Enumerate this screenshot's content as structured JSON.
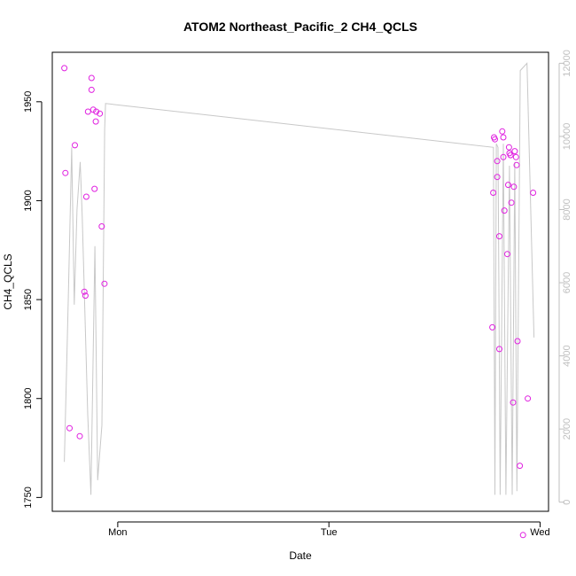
{
  "chart_data": {
    "type": "scatter",
    "title": "ATOM2 Northeast_Pacific_2 CH4_QCLS",
    "xlabel": "Date",
    "ylabel": "CH4_QCLS",
    "y_left_range": [
      1743,
      1975
    ],
    "y_left_ticks": [
      "1750",
      "1800",
      "1850",
      "1900",
      "1950"
    ],
    "y_right_range": [
      -250,
      12300
    ],
    "y_right_ticks": [
      "0",
      "2000",
      "4000",
      "6000",
      "8000",
      "10000",
      "12000"
    ],
    "x_range_days": [
      -0.31,
      2.04
    ],
    "x_ticks": [
      {
        "label": "Mon",
        "day": 0
      },
      {
        "label": "Tue",
        "day": 1
      },
      {
        "label": "Wed",
        "day": 2
      }
    ],
    "colors": {
      "points": "#e020e0",
      "altitude_line": "#c8c8c8",
      "axis": "#000000",
      "right_axis": "#bfbfbf"
    },
    "series": [
      {
        "values": [
          {
            "x": -0.253,
            "y": 1967
          },
          {
            "x": -0.248,
            "y": 1914
          },
          {
            "x": -0.228,
            "y": 1785
          },
          {
            "x": -0.203,
            "y": 1928
          },
          {
            "x": -0.18,
            "y": 1781
          },
          {
            "x": -0.158,
            "y": 1854
          },
          {
            "x": -0.153,
            "y": 1852
          },
          {
            "x": -0.149,
            "y": 1902
          },
          {
            "x": -0.141,
            "y": 1945
          },
          {
            "x": -0.124,
            "y": 1962
          },
          {
            "x": -0.124,
            "y": 1956
          },
          {
            "x": -0.116,
            "y": 1946
          },
          {
            "x": -0.11,
            "y": 1906
          },
          {
            "x": -0.104,
            "y": 1940
          },
          {
            "x": -0.102,
            "y": 1945
          },
          {
            "x": -0.085,
            "y": 1944
          },
          {
            "x": -0.076,
            "y": 1887
          },
          {
            "x": -0.063,
            "y": 1858
          },
          {
            "x": 1.774,
            "y": 1836
          },
          {
            "x": 1.778,
            "y": 1904
          },
          {
            "x": 1.782,
            "y": 1932
          },
          {
            "x": 1.786,
            "y": 1931
          },
          {
            "x": 1.797,
            "y": 1920
          },
          {
            "x": 1.797,
            "y": 1912
          },
          {
            "x": 1.807,
            "y": 1882
          },
          {
            "x": 1.807,
            "y": 1825
          },
          {
            "x": 1.821,
            "y": 1935
          },
          {
            "x": 1.826,
            "y": 1932
          },
          {
            "x": 1.826,
            "y": 1922
          },
          {
            "x": 1.831,
            "y": 1895
          },
          {
            "x": 1.845,
            "y": 1873
          },
          {
            "x": 1.849,
            "y": 1908
          },
          {
            "x": 1.853,
            "y": 1927
          },
          {
            "x": 1.855,
            "y": 1924
          },
          {
            "x": 1.86,
            "y": 1923
          },
          {
            "x": 1.864,
            "y": 1899
          },
          {
            "x": 1.872,
            "y": 1798
          },
          {
            "x": 1.876,
            "y": 1907
          },
          {
            "x": 1.88,
            "y": 1925
          },
          {
            "x": 1.886,
            "y": 1922
          },
          {
            "x": 1.889,
            "y": 1918
          },
          {
            "x": 1.893,
            "y": 1829
          },
          {
            "x": 1.904,
            "y": 1766
          },
          {
            "x": 1.919,
            "y": 1731
          },
          {
            "x": 1.942,
            "y": 1800
          },
          {
            "x": 1.967,
            "y": 1904
          }
        ]
      }
    ],
    "altitude_line": [
      {
        "x": -0.253,
        "y": 1100
      },
      {
        "x": -0.234,
        "y": 5600
      },
      {
        "x": -0.218,
        "y": 9700
      },
      {
        "x": -0.206,
        "y": 5400
      },
      {
        "x": -0.193,
        "y": 8000
      },
      {
        "x": -0.178,
        "y": 9300
      },
      {
        "x": -0.168,
        "y": 7800
      },
      {
        "x": -0.142,
        "y": 2400
      },
      {
        "x": -0.127,
        "y": 200
      },
      {
        "x": -0.108,
        "y": 7000
      },
      {
        "x": -0.095,
        "y": 600
      },
      {
        "x": -0.075,
        "y": 2100
      },
      {
        "x": -0.062,
        "y": 10200
      },
      {
        "x": -0.058,
        "y": 10900
      },
      {
        "x": 1.779,
        "y": 9700
      },
      {
        "x": 1.786,
        "y": 200
      },
      {
        "x": 1.793,
        "y": 9800
      },
      {
        "x": 1.801,
        "y": 9700
      },
      {
        "x": 1.811,
        "y": 200
      },
      {
        "x": 1.826,
        "y": 9800
      },
      {
        "x": 1.838,
        "y": 200
      },
      {
        "x": 1.855,
        "y": 9200
      },
      {
        "x": 1.868,
        "y": 200
      },
      {
        "x": 1.88,
        "y": 9300
      },
      {
        "x": 1.89,
        "y": 300
      },
      {
        "x": 1.906,
        "y": 11800
      },
      {
        "x": 1.938,
        "y": 12000
      },
      {
        "x": 1.971,
        "y": 4500
      }
    ]
  }
}
